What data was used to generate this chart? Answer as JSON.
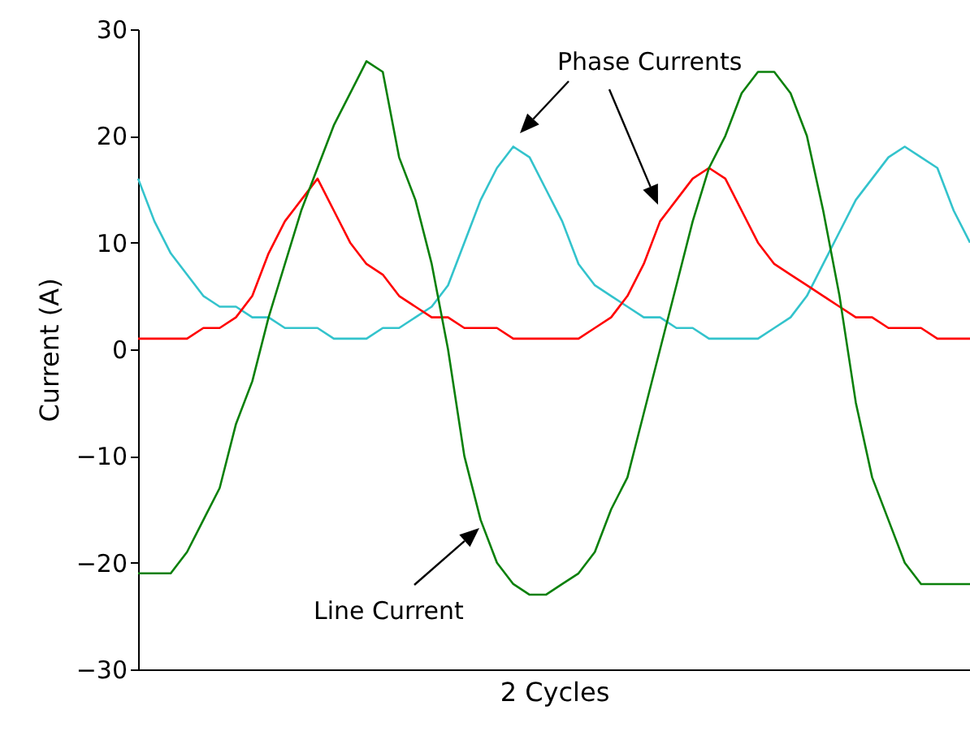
{
  "chart_data": {
    "type": "line",
    "xlabel": "2 Cycles",
    "ylabel": "Current (A)",
    "ylim": [
      -30,
      30
    ],
    "yticks": [
      -30,
      -20,
      -10,
      0,
      10,
      20,
      30
    ],
    "tick_labels": "y",
    "grid": false,
    "categories": [
      null,
      null,
      null,
      null,
      null,
      null,
      null,
      null,
      null,
      null,
      null,
      null,
      null,
      null,
      null,
      null,
      null,
      null,
      null,
      null,
      null,
      null,
      null,
      null,
      null,
      null,
      null,
      null,
      null,
      null,
      null,
      null,
      null,
      null,
      null,
      null,
      null,
      null,
      null,
      null,
      null,
      null,
      null,
      null,
      null,
      null,
      null,
      null,
      null,
      null,
      null,
      null
    ],
    "series": [
      {
        "color": "#33c3cc",
        "values": [
          16,
          12,
          9,
          7,
          5,
          4,
          4,
          3,
          3,
          2,
          2,
          2,
          1,
          1,
          1,
          2,
          2,
          3,
          4,
          6,
          10,
          14,
          17,
          19,
          18,
          15,
          12,
          8,
          6,
          5,
          4,
          3,
          3,
          2,
          2,
          1,
          1,
          1,
          1,
          2,
          3,
          5,
          8,
          11,
          14,
          16,
          18,
          19,
          18,
          17,
          13,
          10
        ]
      },
      {
        "color": "#ff0000",
        "values": [
          1,
          1,
          1,
          1,
          2,
          2,
          3,
          5,
          9,
          12,
          14,
          16,
          13,
          10,
          8,
          7,
          5,
          4,
          3,
          3,
          2,
          2,
          2,
          1,
          1,
          1,
          1,
          1,
          2,
          3,
          5,
          8,
          12,
          14,
          16,
          17,
          16,
          13,
          10,
          8,
          7,
          6,
          5,
          4,
          3,
          3,
          2,
          2,
          2,
          1,
          1,
          1
        ]
      },
      {
        "color": "#0a800a",
        "values": [
          -21,
          -21,
          -21,
          -19,
          -16,
          -13,
          -7,
          -3,
          3,
          8,
          13,
          17,
          21,
          24,
          27,
          26,
          18,
          14,
          8,
          0,
          -10,
          -16,
          -20,
          -22,
          -23,
          -23,
          -22,
          -21,
          -19,
          -15,
          -12,
          -6,
          0,
          6,
          12,
          17,
          20,
          24,
          26,
          26,
          24,
          20,
          13,
          5,
          -5,
          -12,
          -16,
          -20,
          -22,
          -22,
          -22,
          -22
        ]
      }
    ],
    "annotations": [
      "Phase Currents",
      "Line Current"
    ]
  }
}
